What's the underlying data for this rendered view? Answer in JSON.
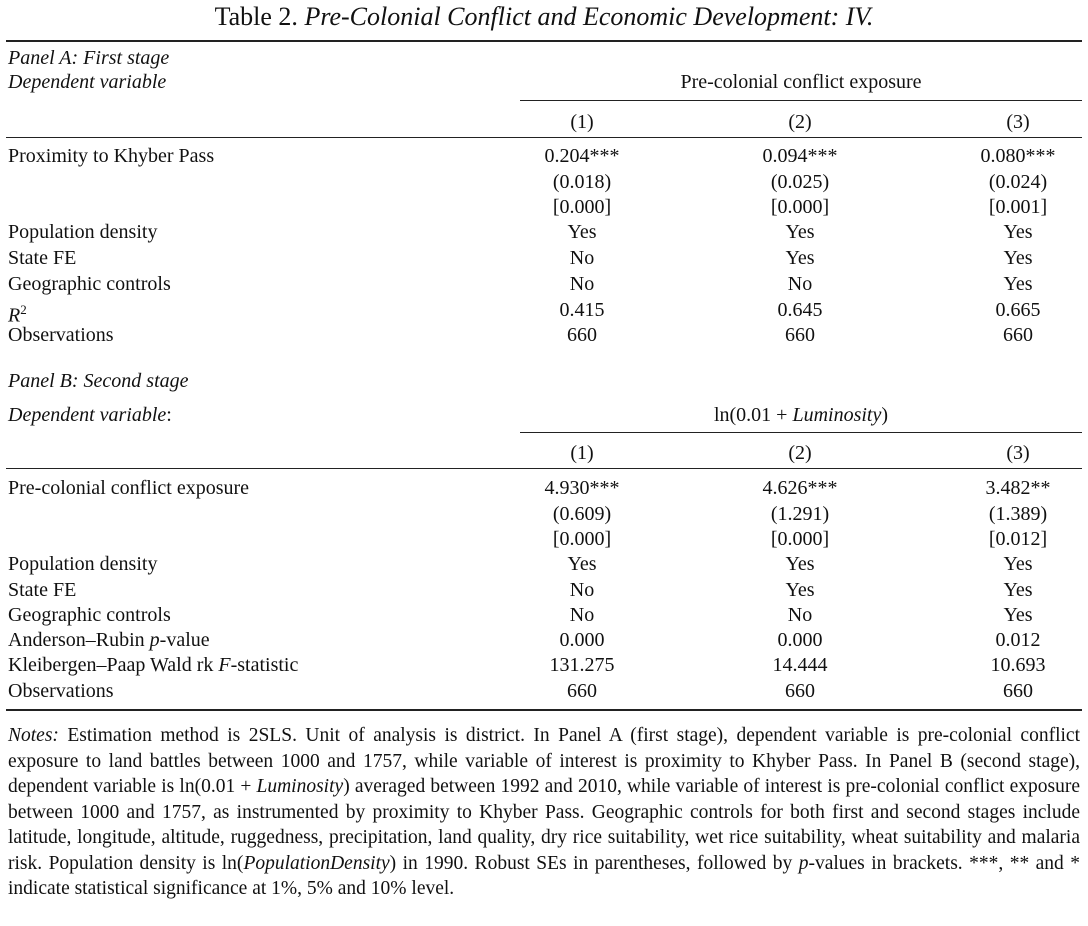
{
  "table": {
    "title_prefix": "Table 2.",
    "title_italic": "Pre-Colonial Conflict and Economic Development: IV.",
    "panel_a": {
      "label": "Panel A: First stage",
      "dep_var_label": "Dependent variable",
      "dep_var": "Pre-colonial conflict exposure",
      "columns": [
        "(1)",
        "(2)",
        "(3)"
      ],
      "rows": [
        {
          "label": "Proximity to Khyber Pass",
          "values": [
            "0.204***",
            "0.094***",
            "0.080***"
          ]
        },
        {
          "label": "",
          "values": [
            "(0.018)",
            "(0.025)",
            "(0.024)"
          ]
        },
        {
          "label": "",
          "values": [
            "[0.000]",
            "[0.000]",
            "[0.001]"
          ]
        },
        {
          "label": "Population density",
          "values": [
            "Yes",
            "Yes",
            "Yes"
          ]
        },
        {
          "label": "State FE",
          "values": [
            "No",
            "Yes",
            "Yes"
          ]
        },
        {
          "label": "Geographic controls",
          "values": [
            "No",
            "No",
            "Yes"
          ]
        },
        {
          "label": "R",
          "sup": "2",
          "values": [
            "0.415",
            "0.645",
            "0.665"
          ]
        },
        {
          "label": "Observations",
          "values": [
            "660",
            "660",
            "660"
          ]
        }
      ]
    },
    "panel_b": {
      "label": "Panel B: Second stage",
      "dep_var_label": "Dependent variable",
      "dep_var_prefix": "ln(0.01 + ",
      "dep_var_italic": "Luminosity",
      "dep_var_suffix": ")",
      "columns": [
        "(1)",
        "(2)",
        "(3)"
      ],
      "rows": [
        {
          "label": "Pre-colonial conflict exposure",
          "values": [
            "4.930***",
            "4.626***",
            "3.482**"
          ]
        },
        {
          "label": "",
          "values": [
            "(0.609)",
            "(1.291)",
            "(1.389)"
          ]
        },
        {
          "label": "",
          "values": [
            "[0.000]",
            "[0.000]",
            "[0.012]"
          ]
        },
        {
          "label": "Population density",
          "values": [
            "Yes",
            "Yes",
            "Yes"
          ]
        },
        {
          "label": "State FE",
          "values": [
            "No",
            "Yes",
            "Yes"
          ]
        },
        {
          "label": "Geographic controls",
          "values": [
            "No",
            "No",
            "Yes"
          ]
        },
        {
          "label": "Anderson–Rubin ",
          "label_italic": "p",
          "label_suffix": "-value",
          "values": [
            "0.000",
            "0.000",
            "0.012"
          ]
        },
        {
          "label": "Kleibergen–Paap Wald rk ",
          "label_italic": "F",
          "label_suffix": "-statistic",
          "values": [
            "131.275",
            "14.444",
            "10.693"
          ]
        },
        {
          "label": "Observations",
          "values": [
            "660",
            "660",
            "660"
          ]
        }
      ]
    }
  },
  "notes": {
    "label": "Notes:",
    "text_1": " Estimation method is 2SLS. Unit of analysis is district. In Panel A (first stage), dependent variable is pre-colonial conflict exposure to land battles between 1000 and 1757, while variable of interest is proximity to Khyber Pass. In Panel B (second stage), dependent variable is ln(0.01 + ",
    "italic_1": "Luminosity",
    "text_2": ") averaged between 1992 and 2010, while variable of interest is pre-colonial conflict exposure between 1000 and 1757, as instrumented by proximity to Khyber Pass. Geographic controls for both first and second stages include latitude, longitude, altitude, ruggedness, precipitation, land quality, dry rice suitability, wet rice suitability, wheat suitability and malaria risk. Population density is ln(",
    "italic_2": "PopulationDensity",
    "text_3": ") in 1990. Robust SEs in parentheses, followed by ",
    "italic_3": "p",
    "text_4": "-values in brackets. ***, ** and * indicate statistical significance at 1%, 5% and 10% level."
  }
}
